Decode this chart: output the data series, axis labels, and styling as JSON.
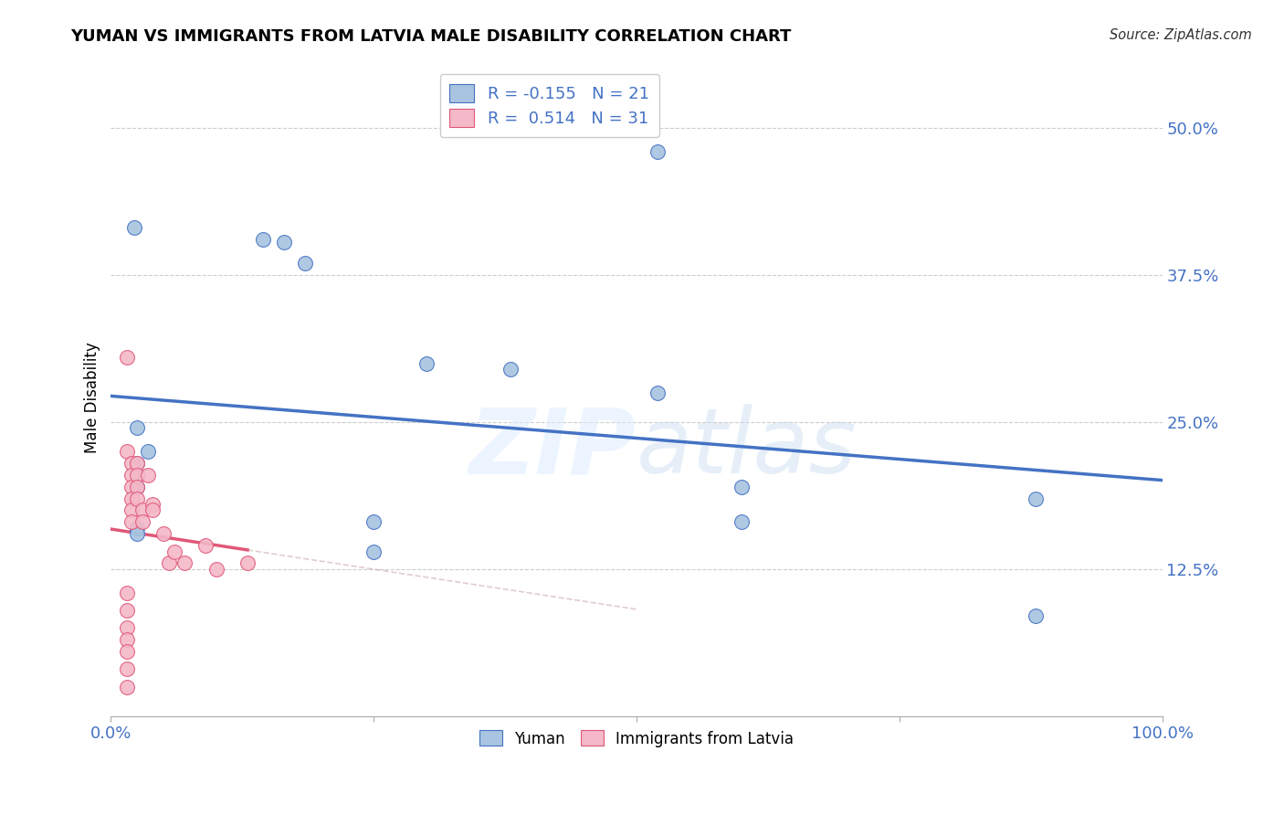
{
  "title": "YUMAN VS IMMIGRANTS FROM LATVIA MALE DISABILITY CORRELATION CHART",
  "source": "Source: ZipAtlas.com",
  "ylabel": "Male Disability",
  "watermark": "ZIPatlas",
  "yuman_R": -0.155,
  "yuman_N": 21,
  "latvia_R": 0.514,
  "latvia_N": 31,
  "xlim": [
    0.0,
    1.0
  ],
  "ylim": [
    0.0,
    0.5417
  ],
  "yticks": [
    0.125,
    0.25,
    0.375,
    0.5
  ],
  "ytick_labels": [
    "12.5%",
    "25.0%",
    "37.5%",
    "50.0%"
  ],
  "xticks": [
    0.0,
    0.25,
    0.5,
    0.75,
    1.0
  ],
  "xtick_labels": [
    "0.0%",
    "",
    "",
    "",
    "100.0%"
  ],
  "blue_color": "#a8c4e0",
  "pink_color": "#f4b8c8",
  "line_blue": "#4472c4",
  "line_pink": "#e05878",
  "yuman_x": [
    0.022,
    0.145,
    0.165,
    0.185,
    0.025,
    0.035,
    0.025,
    0.025,
    0.025,
    0.025,
    0.025,
    0.3,
    0.38,
    0.52,
    0.6,
    0.88,
    0.52,
    0.25,
    0.25,
    0.88,
    0.6
  ],
  "yuman_y": [
    0.415,
    0.405,
    0.403,
    0.385,
    0.245,
    0.225,
    0.215,
    0.205,
    0.195,
    0.16,
    0.155,
    0.3,
    0.295,
    0.275,
    0.195,
    0.085,
    0.48,
    0.165,
    0.14,
    0.185,
    0.165
  ],
  "latvia_x": [
    0.015,
    0.015,
    0.02,
    0.02,
    0.02,
    0.02,
    0.02,
    0.02,
    0.025,
    0.025,
    0.025,
    0.025,
    0.03,
    0.03,
    0.035,
    0.04,
    0.04,
    0.05,
    0.055,
    0.06,
    0.07,
    0.09,
    0.1,
    0.13,
    0.015,
    0.015,
    0.015,
    0.015,
    0.015,
    0.015,
    0.015
  ],
  "latvia_y": [
    0.305,
    0.225,
    0.215,
    0.205,
    0.195,
    0.185,
    0.175,
    0.165,
    0.215,
    0.205,
    0.195,
    0.185,
    0.175,
    0.165,
    0.205,
    0.18,
    0.175,
    0.155,
    0.13,
    0.14,
    0.13,
    0.145,
    0.125,
    0.13,
    0.105,
    0.09,
    0.075,
    0.065,
    0.055,
    0.04,
    0.025
  ],
  "tick_label_color": "#4472c4",
  "grid_color": "#cccccc",
  "background_color": "#ffffff"
}
